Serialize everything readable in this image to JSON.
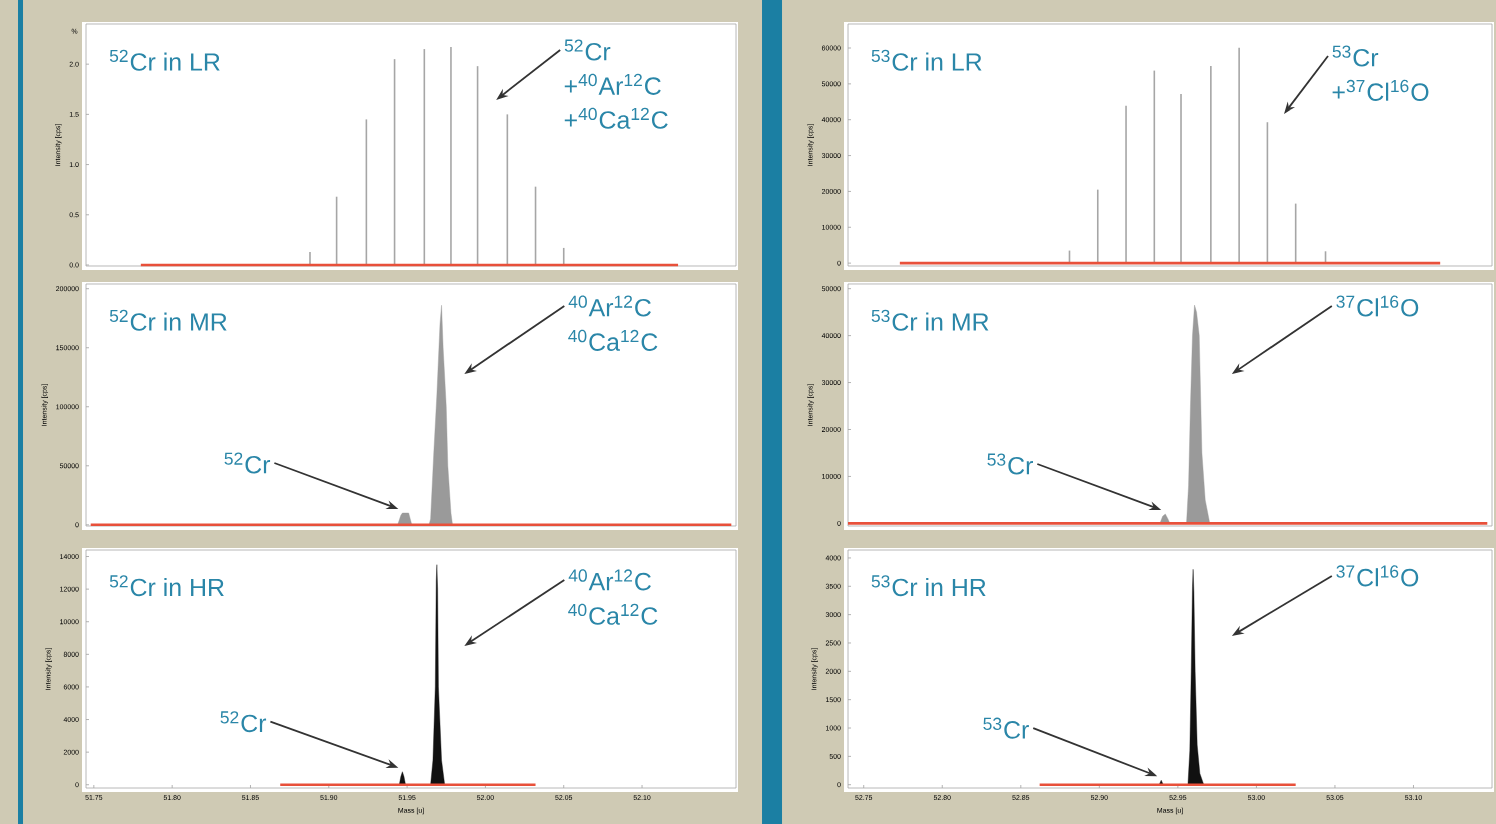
{
  "chart_data": [
    {
      "type": "bar",
      "title": "$^{52}$Cr in LR",
      "ylabel": "Intensity [cps]",
      "tick_labels": "y",
      "xlim": [
        51.745,
        52.16
      ],
      "ylim": [
        -0.01,
        2.4
      ],
      "yticks": [
        {
          "value": 0,
          "label": "0.0"
        },
        {
          "value": 0.5,
          "label": "0.5"
        },
        {
          "value": 1,
          "label": "1.0"
        },
        {
          "value": 1.5,
          "label": "1.5"
        },
        {
          "value": 2,
          "label": "2.0"
        }
      ],
      "series": [
        {
          "color": "#a6a6a6",
          "x": [
            51.888,
            51.905,
            51.924,
            51.942,
            51.961,
            51.978,
            51.995,
            52.014,
            52.032,
            52.05
          ],
          "values": [
            0.13,
            0.68,
            1.45,
            2.05,
            2.15,
            2.17,
            1.98,
            1.5,
            0.78,
            0.17
          ]
        },
        {
          "type": "line",
          "color": "#e8503a",
          "x": [
            51.78,
            52.123
          ],
          "values": [
            0,
            0
          ]
        }
      ],
      "annotations": [
        "%",
        "$^{52}$Cr",
        "+$^{40}$Ar$^{12}$C",
        "+$^{40}$Ca$^{12}$C"
      ]
    },
    {
      "type": "bar",
      "title": "$^{53}$Cr in LR",
      "ylabel": "Intensity [cps]",
      "tick_labels": "y",
      "xlim": [
        52.74,
        53.15
      ],
      "ylim": [
        -800,
        66700
      ],
      "yticks": [
        0,
        10000,
        20000,
        30000,
        40000,
        50000,
        60000
      ],
      "series": [
        {
          "color": "#a6a6a6",
          "x": [
            52.881,
            52.899,
            52.917,
            52.935,
            52.952,
            52.971,
            52.989,
            53.007,
            53.025,
            53.044
          ],
          "values": [
            3500,
            20500,
            43900,
            53700,
            47200,
            55000,
            60100,
            39300,
            16600,
            3300
          ]
        },
        {
          "type": "line",
          "color": "#e8503a",
          "x": [
            52.773,
            53.117
          ],
          "values": [
            0,
            0
          ]
        }
      ],
      "annotations": [
        "$^{53}$Cr",
        "+$^{37}$Cl$^{16}$O"
      ]
    },
    {
      "type": "area",
      "title": "$^{52}$Cr in MR",
      "ylabel": "Intensity [cps]",
      "tick_labels": "y",
      "xlim": [
        51.745,
        52.16
      ],
      "ylim": [
        -1000,
        204000
      ],
      "yticks": [
        0,
        50000,
        100000,
        150000,
        200000
      ],
      "series": [
        {
          "color": "#9a9a9a",
          "x": [
            51.944,
            51.946,
            51.947,
            51.951,
            51.953,
            51.964,
            51.965,
            51.967,
            51.969,
            51.971,
            51.972,
            51.973,
            51.975,
            51.976,
            51.978,
            51.979
          ],
          "values": [
            0,
            8000,
            10000,
            10000,
            0,
            0,
            5000,
            60000,
            110000,
            170000,
            186000,
            150000,
            100000,
            50000,
            10000,
            0
          ]
        },
        {
          "type": "line",
          "color": "#e8503a",
          "x": [
            51.748,
            52.157
          ],
          "values": [
            0,
            0
          ]
        }
      ],
      "annotations": [
        "$^{40}$Ar$^{12}$C",
        "$^{40}$Ca$^{12}$C",
        {
          "text": "$^{52}$Cr",
          "x": 51.947,
          "y": 10000
        }
      ]
    },
    {
      "type": "area",
      "title": "$^{53}$Cr in MR",
      "ylabel": "Intensity [cps]",
      "tick_labels": "y",
      "xlim": [
        52.74,
        53.15
      ],
      "ylim": [
        -560,
        51000
      ],
      "yticks": [
        0,
        10000,
        20000,
        30000,
        40000,
        50000
      ],
      "series": [
        {
          "color": "#9a9a9a",
          "x": [
            52.9386,
            52.9403,
            52.942,
            52.9436,
            52.9449,
            52.9555,
            52.9568,
            52.958,
            52.9593,
            52.9606,
            52.9619,
            52.9636,
            52.9653,
            52.9674,
            52.9703
          ],
          "values": [
            0,
            1500,
            2000,
            1000,
            0,
            0,
            8000,
            25000,
            40000,
            46500,
            45000,
            40000,
            15000,
            5000,
            0
          ]
        },
        {
          "type": "line",
          "color": "#e8503a",
          "x": [
            52.74,
            53.147
          ],
          "values": [
            0,
            0
          ]
        }
      ],
      "annotations": [
        "$^{37}$Cl$^{16}$O",
        {
          "text": "$^{53}$Cr",
          "x": 52.942,
          "y": 2000
        }
      ]
    },
    {
      "type": "area",
      "title": "$^{52}$Cr in HR",
      "xlabel": "Mass [u]",
      "ylabel": "Intensity [cps]",
      "xlim": [
        51.745,
        52.16
      ],
      "ylim": [
        -200,
        14400
      ],
      "xticks": [
        {
          "value": 51.75,
          "label": "51.75"
        },
        {
          "value": 51.8,
          "label": "51.80"
        },
        {
          "value": 51.85,
          "label": "51.85"
        },
        {
          "value": 51.9,
          "label": "51.90"
        },
        {
          "value": 51.95,
          "label": "51.95"
        },
        {
          "value": 52,
          "label": "52.00"
        },
        {
          "value": 52.05,
          "label": "52.05"
        },
        {
          "value": 52.1,
          "label": "52.10"
        }
      ],
      "yticks": [
        0,
        2000,
        4000,
        6000,
        8000,
        10000,
        12000,
        14000
      ],
      "series": [
        {
          "color": "#111111",
          "x": [
            51.945,
            51.946,
            51.947,
            51.948,
            51.949,
            51.965,
            51.9665,
            51.968,
            51.9686,
            51.969,
            51.9695,
            51.97,
            51.972,
            51.974
          ],
          "values": [
            0,
            500,
            800,
            500,
            0,
            0,
            1500,
            6000,
            12500,
            13500,
            12000,
            6000,
            1500,
            0
          ]
        },
        {
          "type": "line",
          "color": "#e8503a",
          "x": [
            51.869,
            52.032
          ],
          "values": [
            0,
            0
          ]
        }
      ],
      "annotations": [
        "$^{40}$Ar$^{12}$C",
        "$^{40}$Ca$^{12}$C",
        {
          "text": "$^{52}$Cr",
          "x": 51.947,
          "y": 800
        }
      ]
    },
    {
      "type": "area",
      "title": "$^{53}$Cr in HR",
      "xlabel": "Mass [u]",
      "ylabel": "Intensity [cps]",
      "xlim": [
        52.74,
        53.15
      ],
      "ylim": [
        -58,
        4140
      ],
      "xticks": [
        {
          "value": 52.75,
          "label": "52.75"
        },
        {
          "value": 52.8,
          "label": "52.80"
        },
        {
          "value": 52.85,
          "label": "52.85"
        },
        {
          "value": 52.9,
          "label": "52.90"
        },
        {
          "value": 52.95,
          "label": "52.95"
        },
        {
          "value": 53,
          "label": "53.00"
        },
        {
          "value": 53.05,
          "label": "53.05"
        },
        {
          "value": 53.1,
          "label": "53.10"
        }
      ],
      "yticks": [
        0,
        500,
        1000,
        1500,
        2000,
        2500,
        3000,
        3500,
        4000
      ],
      "series": [
        {
          "color": "#111111",
          "x": [
            52.9381,
            52.9394,
            52.9407,
            52.9564,
            52.9576,
            52.9585,
            52.9593,
            52.9597,
            52.9602,
            52.961,
            52.9623,
            52.964,
            52.9665
          ],
          "values": [
            0,
            80,
            0,
            0,
            600,
            2000,
            3500,
            3800,
            3400,
            2000,
            700,
            200,
            0
          ]
        },
        {
          "type": "line",
          "color": "#e8503a",
          "x": [
            52.862,
            53.025
          ],
          "values": [
            0,
            0
          ]
        }
      ],
      "annotations": [
        "$^{37}$Cl$^{16}$O",
        {
          "text": "$^{53}$Cr",
          "x": 52.9394,
          "y": 80
        }
      ]
    }
  ]
}
